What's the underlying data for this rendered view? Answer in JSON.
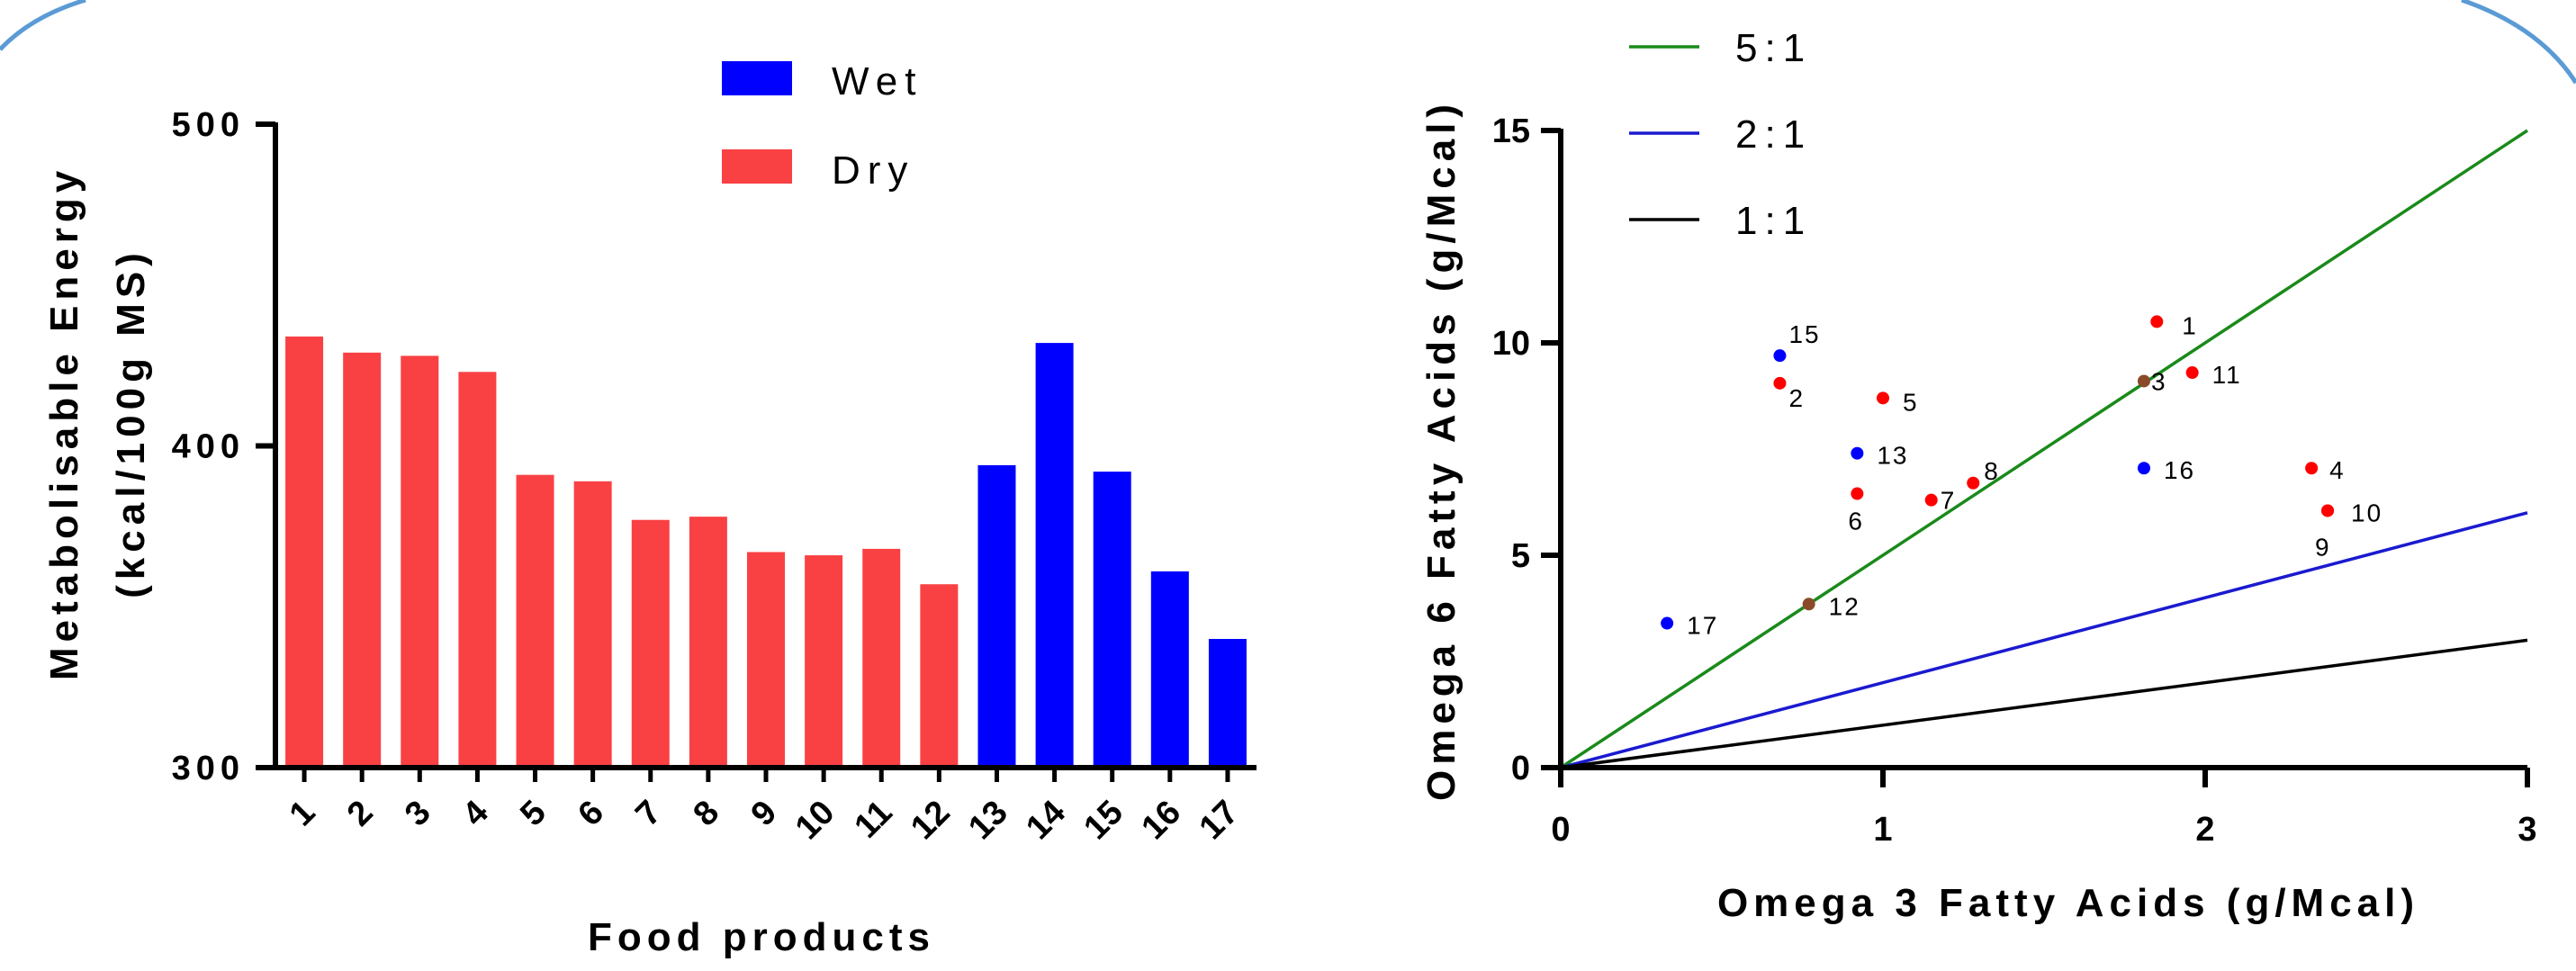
{
  "colors": {
    "wet": "#0000ff",
    "dry": "#f94144",
    "ratio_5_1": "#1a8a1a",
    "ratio_2_1": "#1a1ad0",
    "ratio_1_1": "#000000",
    "frame_arc": "#5b9bd5"
  },
  "chart_data": [
    {
      "type": "bar",
      "xlabel": "Food products",
      "ylabel_line1": "Metabolisable Energy",
      "ylabel_line2": "(kcal/100g MS)",
      "categories": [
        "1",
        "2",
        "3",
        "4",
        "5",
        "6",
        "7",
        "8",
        "9",
        "10",
        "11",
        "12",
        "13",
        "14",
        "15",
        "16",
        "17"
      ],
      "values": [
        434,
        429,
        428,
        423,
        391,
        389,
        377,
        378,
        367,
        366,
        368,
        357,
        394,
        432,
        392,
        361,
        340
      ],
      "groups": [
        "Dry",
        "Dry",
        "Dry",
        "Dry",
        "Dry",
        "Dry",
        "Dry",
        "Dry",
        "Dry",
        "Dry",
        "Dry",
        "Dry",
        "Wet",
        "Wet",
        "Wet",
        "Wet",
        "Wet"
      ],
      "ylim": [
        300,
        500
      ],
      "yticks": [
        "300",
        "400",
        "500"
      ],
      "legend": [
        {
          "name": "Wet",
          "color": "#0000ff"
        },
        {
          "name": "Dry",
          "color": "#f94144"
        }
      ],
      "legend_position": "top"
    },
    {
      "type": "scatter",
      "xlabel": "Omega 3 Fatty Acids (g/Mcal)",
      "ylabel": "Omega 6 Fatty Acids (g/Mcal)",
      "xlim": [
        0,
        3
      ],
      "ylim": [
        0,
        15
      ],
      "xticks": [
        "0",
        "1",
        "2",
        "3"
      ],
      "yticks": [
        "0",
        "5",
        "10",
        "15"
      ],
      "lines": [
        {
          "name": "5:1",
          "slope": 5,
          "color": "#1a8a1a"
        },
        {
          "name": "2:1",
          "slope": 2,
          "color": "#1a1ad0"
        },
        {
          "name": "1:1",
          "slope": 1,
          "color": "#000000"
        }
      ],
      "legend_position": "top-left",
      "points": [
        {
          "label": "1",
          "x": 1.85,
          "y": 10.5,
          "group": "Dry"
        },
        {
          "label": "2",
          "x": 0.68,
          "y": 9.05,
          "group": "Dry"
        },
        {
          "label": "3",
          "x": 1.81,
          "y": 9.1,
          "group": "Dry"
        },
        {
          "label": "4",
          "x": 2.33,
          "y": 7.05,
          "group": "Dry"
        },
        {
          "label": "5",
          "x": 1.0,
          "y": 8.7,
          "group": "Dry"
        },
        {
          "label": "6",
          "x": 0.92,
          "y": 6.45,
          "group": "Dry"
        },
        {
          "label": "7",
          "x": 1.15,
          "y": 6.3,
          "group": "Dry"
        },
        {
          "label": "8",
          "x": 1.28,
          "y": 6.7,
          "group": "Dry"
        },
        {
          "label": "9",
          "x": 2.38,
          "y": 6.05,
          "group": "Dry"
        },
        {
          "label": "10",
          "x": 2.38,
          "y": 6.05,
          "group": "Dry"
        },
        {
          "label": "11",
          "x": 1.96,
          "y": 9.3,
          "group": "Dry"
        },
        {
          "label": "12",
          "x": 0.77,
          "y": 3.85,
          "group": "Dry"
        },
        {
          "label": "13",
          "x": 0.92,
          "y": 7.4,
          "group": "Wet"
        },
        {
          "label": "15",
          "x": 0.68,
          "y": 9.7,
          "group": "Wet"
        },
        {
          "label": "16",
          "x": 1.81,
          "y": 7.05,
          "group": "Wet"
        },
        {
          "label": "17",
          "x": 0.33,
          "y": 3.4,
          "group": "Wet"
        }
      ]
    }
  ]
}
